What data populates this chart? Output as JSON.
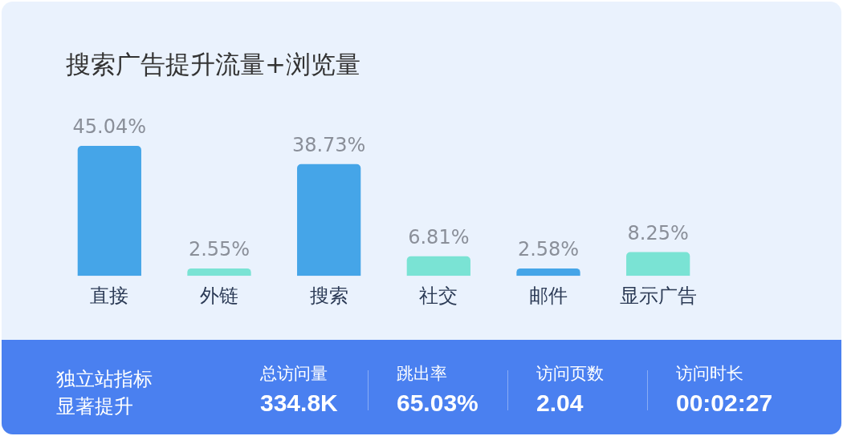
{
  "chart_data": [
    {
      "type": "bar",
      "title": "搜索广告提升流量+浏览量",
      "categories": [
        "直接",
        "外链",
        "搜索",
        "社交",
        "邮件",
        "显示广告"
      ],
      "values": [
        45.04,
        2.55,
        38.73,
        6.81,
        2.58,
        8.25
      ],
      "colors": [
        "#45a5e8",
        "#7ae3d4",
        "#45a5e8",
        "#7ae3d4",
        "#45a5e8",
        "#7ae3d4"
      ],
      "value_labels": [
        "45.04%",
        "2.55%",
        "38.73%",
        "6.81%",
        "2.58%",
        "8.25%"
      ],
      "grid": false,
      "legend": false
    },
    {
      "type": "other",
      "title": "独立站指标显著提升",
      "annotations": [
        "总访问量",
        "334.8K",
        "跳出率",
        "65.03%",
        "访问页数",
        "2.04",
        "访问时长",
        "00:02:27"
      ]
    }
  ]
}
